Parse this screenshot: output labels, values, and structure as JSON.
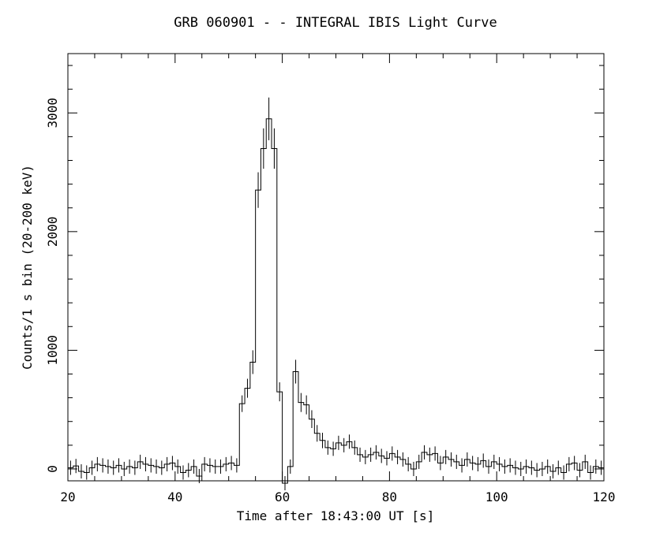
{
  "chart_data": {
    "type": "line",
    "style": "step histogram with error bars",
    "title": "GRB 060901 -  - INTEGRAL IBIS Light Curve",
    "xlabel": "Time after 18:43:00 UT [s]",
    "ylabel": "Counts/1 s bin (20-200 keV)",
    "xlim": [
      20,
      120
    ],
    "ylim": [
      -100,
      3500
    ],
    "xticks": [
      20,
      40,
      60,
      80,
      100,
      120
    ],
    "yticks": [
      0,
      1000,
      2000,
      3000
    ],
    "grid": false,
    "series": [
      {
        "x": [
          20,
          21,
          22,
          23,
          24,
          25,
          26,
          27,
          28,
          29,
          30,
          31,
          32,
          33,
          34,
          35,
          36,
          37,
          38,
          39,
          40,
          41,
          42,
          43,
          44,
          45,
          46,
          47,
          48,
          49,
          50,
          51,
          52,
          53,
          54,
          55,
          56,
          57,
          58,
          59,
          60,
          61,
          62,
          63,
          64,
          65,
          66,
          67,
          68,
          69,
          70,
          71,
          72,
          73,
          74,
          75,
          76,
          77,
          78,
          79,
          80,
          81,
          82,
          83,
          84,
          85,
          86,
          87,
          88,
          89,
          90,
          91,
          92,
          93,
          94,
          95,
          96,
          97,
          98,
          99,
          100,
          101,
          102,
          103,
          104,
          105,
          106,
          107,
          108,
          109,
          110,
          111,
          112,
          113,
          114,
          115,
          116,
          117,
          118,
          119
        ],
        "y": [
          10,
          25,
          -20,
          -30,
          10,
          40,
          30,
          20,
          10,
          30,
          0,
          20,
          10,
          60,
          40,
          30,
          20,
          10,
          40,
          50,
          20,
          -30,
          -10,
          20,
          -60,
          40,
          30,
          20,
          20,
          40,
          50,
          30,
          550,
          680,
          900,
          2350,
          2700,
          2950,
          2700,
          650,
          -120,
          20,
          820,
          560,
          540,
          420,
          300,
          240,
          180,
          170,
          220,
          200,
          230,
          180,
          120,
          100,
          120,
          140,
          110,
          90,
          130,
          100,
          80,
          40,
          0,
          60,
          140,
          120,
          130,
          50,
          100,
          80,
          60,
          30,
          80,
          50,
          40,
          70,
          20,
          60,
          40,
          20,
          30,
          10,
          0,
          20,
          10,
          -10,
          0,
          20,
          -20,
          10,
          -30,
          40,
          50,
          -10,
          60,
          -30,
          20,
          10
        ],
        "err": [
          60,
          60,
          60,
          60,
          60,
          60,
          60,
          60,
          60,
          60,
          60,
          60,
          60,
          60,
          60,
          60,
          60,
          60,
          60,
          60,
          60,
          60,
          60,
          60,
          60,
          60,
          60,
          60,
          60,
          60,
          60,
          60,
          70,
          80,
          100,
          150,
          170,
          180,
          170,
          80,
          60,
          60,
          100,
          80,
          80,
          75,
          70,
          65,
          60,
          60,
          60,
          60,
          60,
          60,
          60,
          60,
          60,
          60,
          60,
          60,
          60,
          60,
          60,
          60,
          60,
          60,
          60,
          60,
          60,
          60,
          60,
          60,
          60,
          60,
          60,
          60,
          60,
          60,
          60,
          60,
          60,
          60,
          60,
          60,
          60,
          60,
          60,
          60,
          60,
          60,
          60,
          60,
          60,
          60,
          60,
          60,
          60,
          60,
          60,
          60
        ]
      }
    ]
  }
}
